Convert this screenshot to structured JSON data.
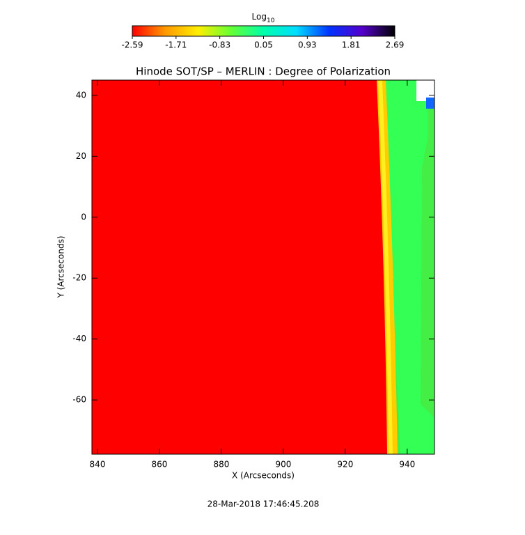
{
  "chart_data": {
    "type": "heatmap",
    "title": "Hinode SOT/SP – MERLIN : Degree of Polarization",
    "x_label": "X (Arcseconds)",
    "y_label": "Y (Arcseconds)",
    "colorbar_label": {
      "text": "Log",
      "subscript": "10"
    },
    "timestamp": "28-Mar-2018 17:46:45.208",
    "xlim": [
      838.2,
      948.8
    ],
    "xticks": [
      840,
      860,
      880,
      900,
      920,
      940
    ],
    "ylim": [
      -77.8,
      45
    ],
    "yticks": [
      -60,
      -40,
      -20,
      0,
      20,
      40
    ],
    "colorbar_lim": [
      -2.59,
      2.69
    ],
    "colorbar_ticks": [
      -2.59,
      -1.71,
      -0.83,
      0.05,
      0.93,
      1.81,
      2.69
    ],
    "colormap": [
      "#ff0000",
      "#ff9900",
      "#ffee00",
      "#66ff33",
      "#00ffaa",
      "#00ddff",
      "#0033ff",
      "#5500cc",
      "#000000"
    ]
  }
}
